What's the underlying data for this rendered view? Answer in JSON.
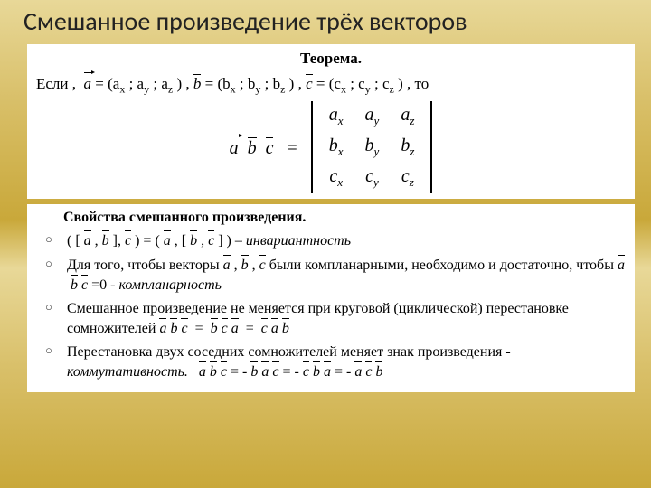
{
  "title": "Смешанное произведение трёх векторов",
  "theorem": {
    "label": "Теорема.",
    "pre": "Если ,",
    "a_def_lead": "a",
    "a_comp": " = (aₓ ; aᵧ ; a_z ) , ",
    "b_lead": "b",
    "b_comp": " = (bₓ ; bᵧ ; b_z ) , ",
    "c_lead": "c",
    "c_comp": " = (cₓ ; cᵧ ; c_z ) , то",
    "lhs_a": "a",
    "lhs_b": "b",
    "lhs_c": "c",
    "eq": " = ",
    "det": [
      [
        "a",
        "x",
        "a",
        "y",
        "a",
        "z"
      ],
      [
        "b",
        "x",
        "b",
        "y",
        "b",
        "z"
      ],
      [
        "c",
        "x",
        "c",
        "y",
        "c",
        "z"
      ]
    ]
  },
  "props": {
    "label": "Свойства смешанного произведения.",
    "p1_a": "( [ ",
    "p1_b": " , ",
    "p1_c": " ], ",
    "p1_d": " ) = ( ",
    "p1_e": " , [ ",
    "p1_f": " , ",
    "p1_g": " ] ) – ",
    "p1_inv": "инвариантность",
    "p2a": "Для того, чтобы векторы ",
    "p2b": " были компланарными, необходимо и достаточно, чтобы ",
    "p2c": " =0 - ",
    "p2d": "компланарность",
    "p3a": "Смешанное произведение не меняется при круговой (циклической) перестановке сомножителей ",
    "p4a": "Перестановка двух соседних сомножителей меняет знак произведения - ",
    "p4b": "коммутативность."
  }
}
